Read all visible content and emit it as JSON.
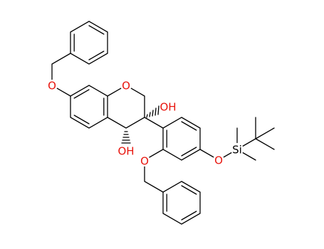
{
  "atoms": [
    {
      "label": "O"
    },
    {
      "label": "O"
    },
    {
      "label": "OH"
    },
    {
      "label": "OH"
    },
    {
      "label": "O"
    },
    {
      "label": "O"
    },
    {
      "label": "Si"
    }
  ]
}
